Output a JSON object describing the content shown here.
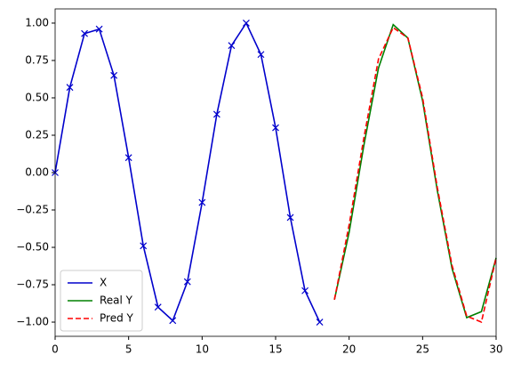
{
  "chart_data": {
    "type": "line",
    "xlim": [
      0,
      30
    ],
    "xticks": [
      0,
      5,
      10,
      15,
      20,
      25,
      30
    ],
    "ylim": [
      -1.095,
      1.095
    ],
    "yticks": [
      {
        "value": -1,
        "label": "−1.00"
      },
      {
        "value": -0.75,
        "label": "−0.75"
      },
      {
        "value": -0.5,
        "label": "−0.50"
      },
      {
        "value": -0.25,
        "label": "−0.25"
      },
      {
        "value": 0,
        "label": "0.00"
      },
      {
        "value": 0.25,
        "label": "0.25"
      },
      {
        "value": 0.5,
        "label": "0.50"
      },
      {
        "value": 0.75,
        "label": "0.75"
      },
      {
        "value": 1,
        "label": "1.00"
      }
    ],
    "legend": "lower left",
    "series": [
      {
        "name": "X",
        "color": "#0000cc",
        "marker": "x",
        "linestyle": "solid",
        "x": [
          0,
          1,
          2,
          3,
          4,
          5,
          6,
          7,
          8,
          9,
          10,
          11,
          12,
          13,
          14,
          15,
          16,
          17,
          18
        ],
        "values": [
          0,
          0.57,
          0.93,
          0.96,
          0.65,
          0.1,
          -0.49,
          -0.9,
          -0.99,
          -0.73,
          -0.2,
          0.39,
          0.85,
          1.0,
          0.79,
          0.3,
          -0.3,
          -0.79,
          -1.0
        ]
      },
      {
        "name": "Real Y",
        "color": "#008000",
        "linestyle": "solid",
        "x": [
          19,
          20,
          21,
          22,
          23,
          24,
          25,
          26,
          27,
          28,
          29,
          30
        ],
        "values": [
          -0.85,
          -0.4,
          0.18,
          0.7,
          0.99,
          0.9,
          0.48,
          -0.12,
          -0.64,
          -0.97,
          -0.93,
          -0.57
        ]
      },
      {
        "name": "Pred Y",
        "color": "#ff0000",
        "linestyle": "dashed",
        "x": [
          19,
          20,
          21,
          22,
          23,
          24,
          25,
          26,
          27,
          28,
          29,
          30
        ],
        "values": [
          -0.85,
          -0.35,
          0.23,
          0.76,
          0.97,
          0.9,
          0.5,
          -0.1,
          -0.62,
          -0.96,
          -1.0,
          -0.57
        ]
      }
    ]
  }
}
